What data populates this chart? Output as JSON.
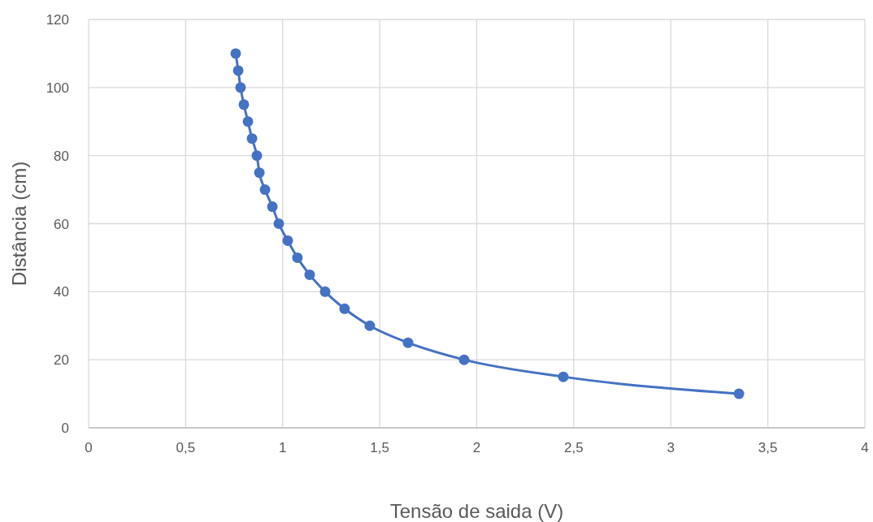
{
  "chart_data": {
    "type": "line",
    "xlabel": "Tensão de saida (V)",
    "ylabel": "Distância (cm)",
    "x": [
      0.758,
      0.771,
      0.783,
      0.8,
      0.821,
      0.842,
      0.867,
      0.88,
      0.909,
      0.947,
      0.98,
      1.026,
      1.076,
      1.139,
      1.219,
      1.319,
      1.449,
      1.646,
      1.935,
      2.446,
      3.351
    ],
    "series": [
      {
        "color": "#4472c4",
        "values": [
          110,
          105,
          100,
          95,
          90,
          85,
          80,
          75,
          70,
          65,
          60,
          55,
          50,
          45,
          40,
          35,
          30,
          25,
          20,
          15,
          10
        ]
      }
    ],
    "xlim": [
      0,
      4
    ],
    "xticks": [
      0,
      {
        "value": 0.5,
        "label": "0,5"
      },
      1,
      {
        "value": 1.5,
        "label": "1,5"
      },
      2,
      {
        "value": 2.5,
        "label": "2,5"
      },
      3,
      {
        "value": 3.5,
        "label": "3,5"
      },
      4
    ],
    "ylim": [
      0,
      120
    ],
    "yticks": [
      0,
      20,
      40,
      60,
      80,
      100,
      120
    ],
    "grid": true,
    "marker": "circle",
    "line_style": "solid"
  }
}
